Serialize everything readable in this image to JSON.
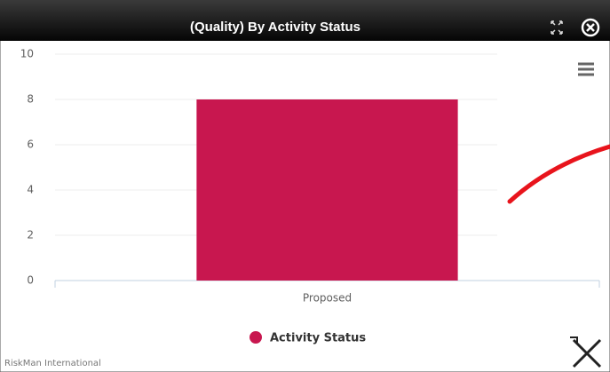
{
  "chart_data": {
    "type": "bar",
    "title": "(Quality) By Activity Status",
    "categories": [
      "Proposed"
    ],
    "series": [
      {
        "name": "Activity Status",
        "color": "#c8174f",
        "values": [
          8
        ]
      }
    ],
    "ylim": [
      0,
      10
    ],
    "yticks": [
      0,
      2,
      4,
      6,
      8,
      10
    ],
    "grid": true,
    "credits": "RiskMan International"
  }
}
